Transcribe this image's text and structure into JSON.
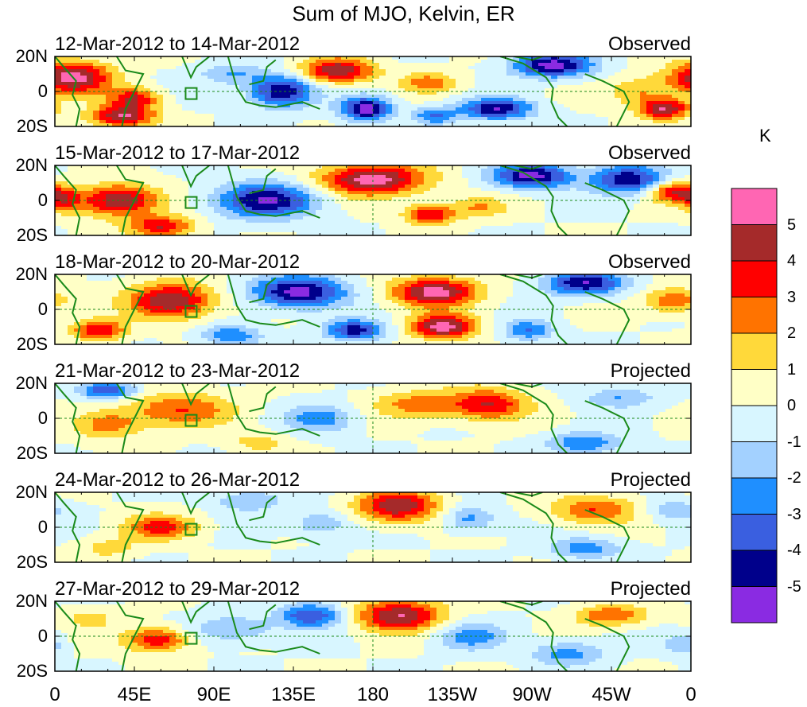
{
  "chart_data": {
    "type": "heatmap",
    "title": "Sum of MJO, Kelvin, ER",
    "unit": "K",
    "x_ticks": [
      "0",
      "45E",
      "90E",
      "135E",
      "180",
      "135W",
      "90W",
      "45W",
      "0"
    ],
    "y_ticks": [
      "20N",
      "0",
      "20S"
    ],
    "x_range": [
      0,
      360
    ],
    "y_range": [
      -20,
      20
    ],
    "colorbar": {
      "ticks": [
        "5",
        "4",
        "3",
        "2",
        "1",
        "0",
        "-1",
        "-2",
        "-3",
        "-4",
        "-5"
      ],
      "colors": [
        "#ff66b3",
        "#a52a2a",
        "#ff0000",
        "#ff7300",
        "#ffd93a",
        "#ffffc6",
        "#d8f6ff",
        "#a3d1ff",
        "#1f8fff",
        "#3a5fe0",
        "#00008b",
        "#8a2be2"
      ]
    },
    "panels": [
      {
        "dates": "12-Mar-2012 to 14-Mar-2012",
        "status": "Observed",
        "blobs": [
          [
            10,
            8,
            22,
            9,
            5.5
          ],
          [
            38,
            -14,
            18,
            6,
            5
          ],
          [
            45,
            -4,
            14,
            6,
            4
          ],
          [
            160,
            12,
            20,
            7,
            5
          ],
          [
            176,
            -10,
            14,
            7,
            -5.5
          ],
          [
            128,
            0,
            18,
            9,
            -5
          ],
          [
            250,
            -10,
            20,
            6,
            -5
          ],
          [
            345,
            -10,
            14,
            6,
            5
          ],
          [
            282,
            15,
            22,
            7,
            -5.5
          ],
          [
            212,
            5,
            16,
            6,
            2.5
          ],
          [
            215,
            -14,
            12,
            5,
            -3
          ],
          [
            100,
            10,
            18,
            6,
            -2
          ],
          [
            330,
            0,
            18,
            8,
            2
          ]
        ]
      },
      {
        "dates": "15-Mar-2012 to 17-Mar-2012",
        "status": "Observed",
        "blobs": [
          [
            180,
            12,
            30,
            9,
            5.5
          ],
          [
            36,
            0,
            22,
            9,
            5
          ],
          [
            60,
            -15,
            18,
            6,
            4
          ],
          [
            120,
            0,
            28,
            10,
            -5
          ],
          [
            270,
            14,
            22,
            7,
            -5.5
          ],
          [
            212,
            -8,
            14,
            6,
            4
          ],
          [
            325,
            12,
            20,
            8,
            -5
          ],
          [
            350,
            5,
            14,
            6,
            4
          ],
          [
            5,
            0,
            10,
            7,
            3
          ],
          [
            240,
            -4,
            16,
            6,
            2
          ]
        ]
      },
      {
        "dates": "18-Mar-2012 to 20-Mar-2012",
        "status": "Observed",
        "blobs": [
          [
            66,
            5,
            24,
            10,
            5
          ],
          [
            25,
            -12,
            15,
            6,
            4
          ],
          [
            138,
            10,
            26,
            9,
            -5.5
          ],
          [
            215,
            10,
            24,
            8,
            5.5
          ],
          [
            220,
            -10,
            18,
            7,
            5.5
          ],
          [
            170,
            -12,
            16,
            6,
            -4.5
          ],
          [
            300,
            15,
            22,
            7,
            -5
          ],
          [
            350,
            5,
            16,
            7,
            3
          ],
          [
            100,
            -15,
            16,
            6,
            -3
          ],
          [
            268,
            -12,
            14,
            6,
            -3
          ]
        ]
      },
      {
        "dates": "21-Mar-2012 to 23-Mar-2012",
        "status": "Projected",
        "blobs": [
          [
            70,
            5,
            30,
            10,
            3
          ],
          [
            30,
            -4,
            18,
            8,
            2.5
          ],
          [
            205,
            8,
            24,
            8,
            2.5
          ],
          [
            245,
            8,
            22,
            9,
            4
          ],
          [
            30,
            16,
            16,
            5,
            -4
          ],
          [
            150,
            0,
            20,
            8,
            -2.5
          ],
          [
            300,
            -14,
            20,
            6,
            -3
          ],
          [
            320,
            12,
            20,
            6,
            -2
          ],
          [
            115,
            -14,
            16,
            6,
            1.5
          ]
        ]
      },
      {
        "dates": "24-Mar-2012 to 26-Mar-2012",
        "status": "Projected",
        "blobs": [
          [
            194,
            12,
            22,
            9,
            5
          ],
          [
            60,
            0,
            20,
            7,
            3.5
          ],
          [
            110,
            15,
            20,
            6,
            -2
          ],
          [
            150,
            2,
            16,
            7,
            -2
          ],
          [
            235,
            5,
            14,
            7,
            -2.5
          ],
          [
            305,
            10,
            24,
            8,
            3
          ],
          [
            300,
            -12,
            20,
            6,
            -2.5
          ],
          [
            350,
            10,
            14,
            6,
            -2
          ],
          [
            30,
            -12,
            16,
            6,
            1.5
          ]
        ]
      },
      {
        "dates": "27-Mar-2012 to 29-Mar-2012",
        "status": "Projected",
        "blobs": [
          [
            195,
            12,
            24,
            9,
            5
          ],
          [
            58,
            -2,
            18,
            7,
            4
          ],
          [
            145,
            12,
            18,
            7,
            -4
          ],
          [
            100,
            4,
            24,
            8,
            -2
          ],
          [
            235,
            0,
            20,
            8,
            -2.5
          ],
          [
            315,
            12,
            20,
            6,
            3
          ],
          [
            290,
            -10,
            20,
            7,
            -2.5
          ],
          [
            355,
            -5,
            10,
            6,
            -2
          ],
          [
            20,
            10,
            14,
            6,
            1.5
          ]
        ]
      }
    ]
  }
}
